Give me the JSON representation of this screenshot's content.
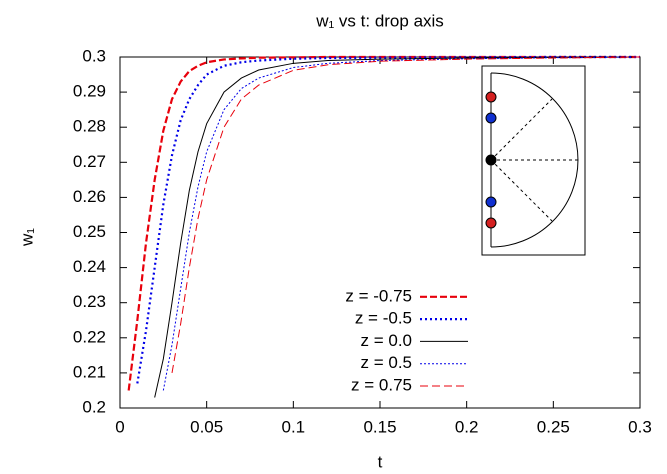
{
  "chart_data": {
    "type": "line",
    "title": "w₁ vs t: drop axis",
    "xlabel": "t",
    "ylabel": "w₁",
    "x": [
      0,
      0.005,
      0.01,
      0.015,
      0.02,
      0.025,
      0.03,
      0.035,
      0.04,
      0.045,
      0.05,
      0.06,
      0.07,
      0.08,
      0.1,
      0.12,
      0.15,
      0.2,
      0.25,
      0.3
    ],
    "series": [
      {
        "name": "z = -0.75",
        "color": "#e8000b",
        "line_style": "dashed",
        "line_width": 2.2,
        "values": [
          null,
          0.205,
          0.225,
          0.247,
          0.265,
          0.279,
          0.288,
          0.293,
          0.296,
          0.2975,
          0.2985,
          0.2993,
          0.2996,
          0.2998,
          0.2999,
          0.3,
          0.3,
          0.3,
          0.3,
          0.3
        ]
      },
      {
        "name": "z = -0.5",
        "color": "#0000e8",
        "line_style": "dotted",
        "line_width": 2.2,
        "values": [
          null,
          null,
          0.207,
          0.222,
          0.24,
          0.258,
          0.272,
          0.282,
          0.288,
          0.292,
          0.295,
          0.2975,
          0.2985,
          0.299,
          0.2995,
          0.2997,
          0.2998,
          0.2999,
          0.3,
          0.3
        ]
      },
      {
        "name": "z = 0.0",
        "color": "#000000",
        "line_style": "solid",
        "line_width": 1,
        "values": [
          null,
          null,
          null,
          null,
          0.203,
          0.214,
          0.23,
          0.247,
          0.262,
          0.273,
          0.281,
          0.29,
          0.294,
          0.2963,
          0.2982,
          0.299,
          0.2994,
          0.2997,
          0.2999,
          0.3
        ]
      },
      {
        "name": "z = 0.5",
        "color": "#0000e8",
        "line_style": "dotted",
        "line_width": 1,
        "values": [
          null,
          null,
          null,
          null,
          null,
          0.205,
          0.218,
          0.234,
          0.25,
          0.263,
          0.273,
          0.285,
          0.291,
          0.294,
          0.297,
          0.2982,
          0.299,
          0.2995,
          0.2998,
          0.3
        ]
      },
      {
        "name": "z = 0.75",
        "color": "#e8000b",
        "line_style": "dashed",
        "line_width": 1,
        "values": [
          null,
          null,
          null,
          null,
          null,
          null,
          0.21,
          0.224,
          0.24,
          0.254,
          0.265,
          0.28,
          0.288,
          0.292,
          0.2962,
          0.2978,
          0.2988,
          0.2994,
          0.2997,
          0.3
        ]
      }
    ],
    "xlim": [
      0,
      0.3
    ],
    "xticks": [
      0,
      0.05,
      0.1,
      0.15,
      0.2,
      0.25,
      0.3
    ],
    "ylim": [
      0.2,
      0.3
    ],
    "yticks": [
      0.2,
      0.21,
      0.22,
      0.23,
      0.24,
      0.25,
      0.26,
      0.27,
      0.28,
      0.29,
      0.3
    ],
    "grid": false,
    "legend": "lower right"
  }
}
